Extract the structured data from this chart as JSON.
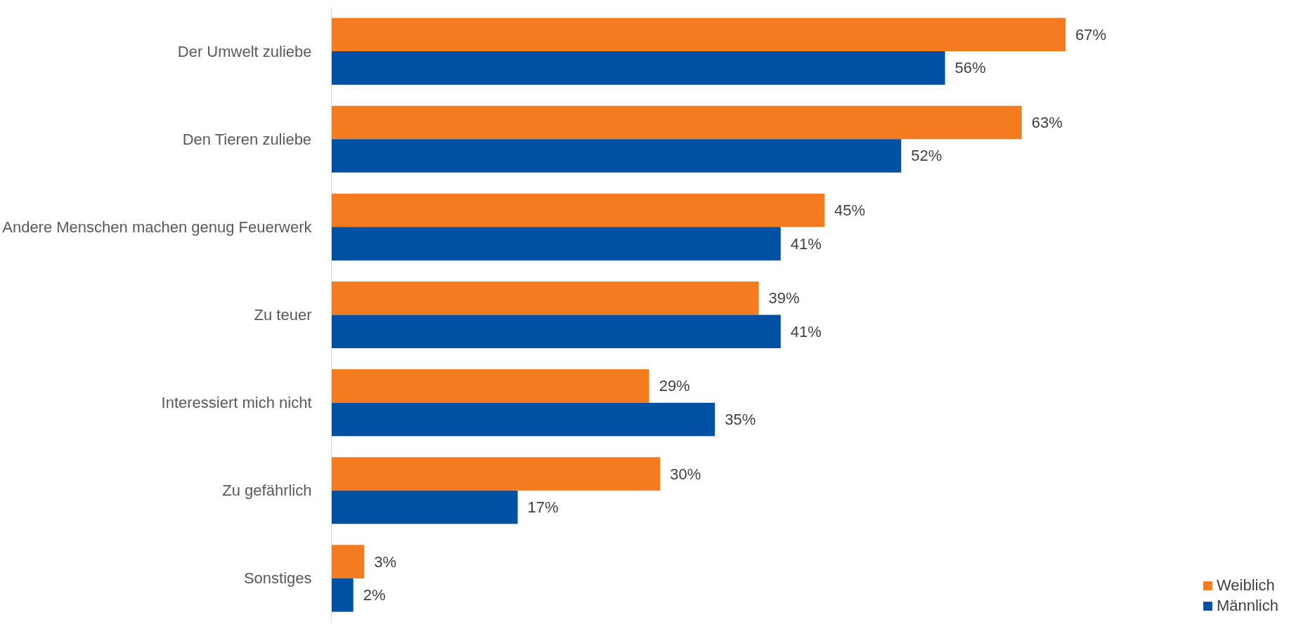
{
  "chart_data": {
    "type": "bar",
    "orientation": "horizontal",
    "categories": [
      "Der Umwelt zuliebe",
      "Den Tieren zuliebe",
      "Andere Menschen machen genug Feuerwerk",
      "Zu teuer",
      "Interessiert mich nicht",
      "Zu gefährlich",
      "Sonstiges"
    ],
    "series": [
      {
        "name": "Weiblich",
        "color": "#f47b20",
        "values": [
          67,
          63,
          45,
          39,
          29,
          30,
          3
        ],
        "value_labels": [
          "67%",
          "63%",
          "45%",
          "39%",
          "29%",
          "30%",
          "3%"
        ]
      },
      {
        "name": "Männlich",
        "color": "#0050a4",
        "values": [
          56,
          52,
          41,
          41,
          35,
          17,
          2
        ],
        "value_labels": [
          "56%",
          "52%",
          "41%",
          "41%",
          "35%",
          "17%",
          "2%"
        ]
      }
    ],
    "tick_labels": "y",
    "grid": false,
    "legend": "bottom right"
  }
}
